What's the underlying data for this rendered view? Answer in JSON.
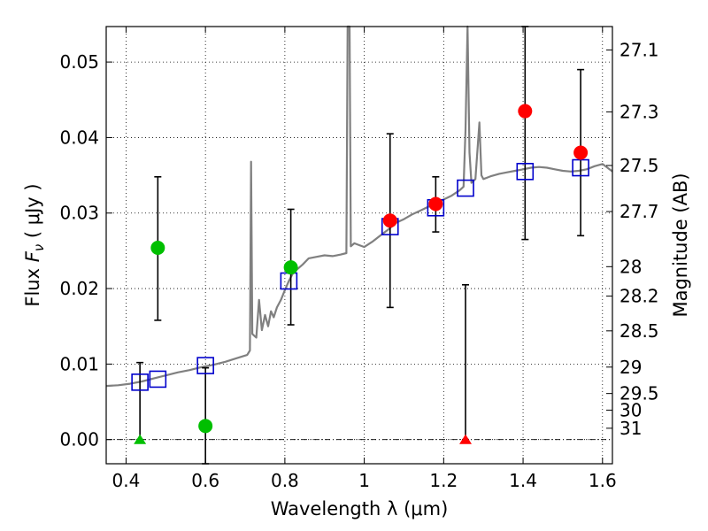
{
  "chart_data": {
    "type": "scatter",
    "xlabel": "Wavelength  λ (μm)",
    "ylabel": "Flux  F_ν  ( μJy )",
    "ylabel_parts": {
      "prefix": "Flux  ",
      "symbol": "F",
      "subscript": "ν",
      "suffix": "  ( μJy )"
    },
    "y2label": "Magnitude (AB)",
    "xlim": [
      0.35,
      1.625
    ],
    "ylim": [
      -0.0032,
      0.0547
    ],
    "grid": true,
    "xticks": [
      0.4,
      0.6,
      0.8,
      1.0,
      1.2,
      1.4,
      1.6
    ],
    "xtick_labels": [
      "0.4",
      "0.6",
      "0.8",
      "1",
      "1.2",
      "1.4",
      "1.6"
    ],
    "yticks": [
      0.0,
      0.01,
      0.02,
      0.03,
      0.04,
      0.05
    ],
    "ytick_labels": [
      "0.00",
      "0.01",
      "0.02",
      "0.03",
      "0.04",
      "0.05"
    ],
    "y2ticks": [
      {
        "label": "27.1",
        "flux": 0.0516
      },
      {
        "label": "27.3",
        "flux": 0.0434
      },
      {
        "label": "27.5",
        "flux": 0.0363
      },
      {
        "label": "27.7",
        "flux": 0.0302
      },
      {
        "label": "28",
        "flux": 0.0229
      },
      {
        "label": "28.2",
        "flux": 0.019
      },
      {
        "label": "28.5",
        "flux": 0.0144
      },
      {
        "label": "29",
        "flux": 0.0096
      },
      {
        "label": "29.5",
        "flux": 0.0061
      },
      {
        "label": "30",
        "flux": 0.0039
      },
      {
        "label": "31",
        "flux": 0.0015
      }
    ],
    "colors": {
      "model": "#808080",
      "green": "#00bf00",
      "red": "#ff0000",
      "blue": "#0000cc",
      "errorbar": "#000000"
    },
    "series": [
      {
        "name": "model SED",
        "kind": "line",
        "color": "#808080",
        "points": [
          [
            0.35,
            0.0071
          ],
          [
            0.38,
            0.0072
          ],
          [
            0.41,
            0.0074
          ],
          [
            0.44,
            0.0077
          ],
          [
            0.47,
            0.0081
          ],
          [
            0.5,
            0.0085
          ],
          [
            0.53,
            0.0089
          ],
          [
            0.56,
            0.0092
          ],
          [
            0.59,
            0.0096
          ],
          [
            0.62,
            0.0099
          ],
          [
            0.65,
            0.0103
          ],
          [
            0.68,
            0.0108
          ],
          [
            0.705,
            0.0112
          ],
          [
            0.712,
            0.0118
          ],
          [
            0.715,
            0.0368
          ],
          [
            0.718,
            0.014
          ],
          [
            0.728,
            0.0135
          ],
          [
            0.735,
            0.0185
          ],
          [
            0.742,
            0.0145
          ],
          [
            0.75,
            0.0165
          ],
          [
            0.758,
            0.015
          ],
          [
            0.765,
            0.017
          ],
          [
            0.772,
            0.0162
          ],
          [
            0.78,
            0.0175
          ],
          [
            0.79,
            0.0185
          ],
          [
            0.8,
            0.0198
          ],
          [
            0.81,
            0.021
          ],
          [
            0.82,
            0.022
          ],
          [
            0.83,
            0.0225
          ],
          [
            0.845,
            0.0232
          ],
          [
            0.86,
            0.024
          ],
          [
            0.88,
            0.0242
          ],
          [
            0.9,
            0.0244
          ],
          [
            0.92,
            0.0243
          ],
          [
            0.94,
            0.0245
          ],
          [
            0.955,
            0.0247
          ],
          [
            0.958,
            0.0547
          ],
          [
            0.963,
            0.0547
          ],
          [
            0.966,
            0.0256
          ],
          [
            0.975,
            0.026
          ],
          [
            0.985,
            0.0258
          ],
          [
            1.0,
            0.0255
          ],
          [
            1.02,
            0.0262
          ],
          [
            1.04,
            0.027
          ],
          [
            1.06,
            0.0278
          ],
          [
            1.08,
            0.0287
          ],
          [
            1.1,
            0.0292
          ],
          [
            1.12,
            0.0298
          ],
          [
            1.14,
            0.0303
          ],
          [
            1.16,
            0.0308
          ],
          [
            1.18,
            0.0312
          ],
          [
            1.2,
            0.0318
          ],
          [
            1.22,
            0.0323
          ],
          [
            1.24,
            0.033
          ],
          [
            1.25,
            0.0335
          ],
          [
            1.255,
            0.041
          ],
          [
            1.26,
            0.0547
          ],
          [
            1.265,
            0.038
          ],
          [
            1.27,
            0.034
          ],
          [
            1.28,
            0.0345
          ],
          [
            1.29,
            0.042
          ],
          [
            1.295,
            0.035
          ],
          [
            1.3,
            0.0345
          ],
          [
            1.31,
            0.0347
          ],
          [
            1.32,
            0.0349
          ],
          [
            1.34,
            0.0352
          ],
          [
            1.36,
            0.0354
          ],
          [
            1.38,
            0.0356
          ],
          [
            1.4,
            0.0358
          ],
          [
            1.42,
            0.036
          ],
          [
            1.44,
            0.0361
          ],
          [
            1.46,
            0.036
          ],
          [
            1.48,
            0.0358
          ],
          [
            1.5,
            0.0356
          ],
          [
            1.52,
            0.0355
          ],
          [
            1.54,
            0.0356
          ],
          [
            1.56,
            0.0358
          ],
          [
            1.58,
            0.0362
          ],
          [
            1.6,
            0.0365
          ],
          [
            1.625,
            0.0355
          ]
        ]
      },
      {
        "name": "model band fluxes",
        "kind": "square",
        "color": "#0000cc",
        "points": [
          [
            0.435,
            0.0076
          ],
          [
            0.48,
            0.008
          ],
          [
            0.6,
            0.0098
          ],
          [
            0.81,
            0.021
          ],
          [
            1.065,
            0.0282
          ],
          [
            1.18,
            0.0307
          ],
          [
            1.255,
            0.0333
          ],
          [
            1.405,
            0.0355
          ],
          [
            1.545,
            0.036
          ]
        ]
      },
      {
        "name": "green detections",
        "kind": "circle",
        "color": "#00bf00",
        "points": [
          {
            "x": 0.48,
            "y": 0.0254,
            "lo": 0.0158,
            "hi": 0.0348
          },
          {
            "x": 0.6,
            "y": 0.0018,
            "lo": -0.0032,
            "hi": 0.0095
          },
          {
            "x": 0.815,
            "y": 0.0228,
            "lo": 0.0152,
            "hi": 0.0305
          }
        ]
      },
      {
        "name": "red detections",
        "kind": "circle",
        "color": "#ff0000",
        "points": [
          {
            "x": 1.065,
            "y": 0.029,
            "lo": 0.0175,
            "hi": 0.0405
          },
          {
            "x": 1.18,
            "y": 0.0312,
            "lo": 0.0275,
            "hi": 0.0348
          },
          {
            "x": 1.405,
            "y": 0.0435,
            "lo": 0.0265,
            "hi": 0.0547
          },
          {
            "x": 1.545,
            "y": 0.038,
            "lo": 0.027,
            "hi": 0.049
          }
        ]
      },
      {
        "name": "upper limits",
        "kind": "triangle",
        "points": [
          {
            "x": 0.435,
            "y": 0.0,
            "lo": 0.0,
            "hi": 0.0102,
            "color": "#00bf00"
          },
          {
            "x": 1.255,
            "y": 0.0,
            "lo": 0.0,
            "hi": 0.0205,
            "color": "#ff0000"
          }
        ]
      }
    ]
  }
}
